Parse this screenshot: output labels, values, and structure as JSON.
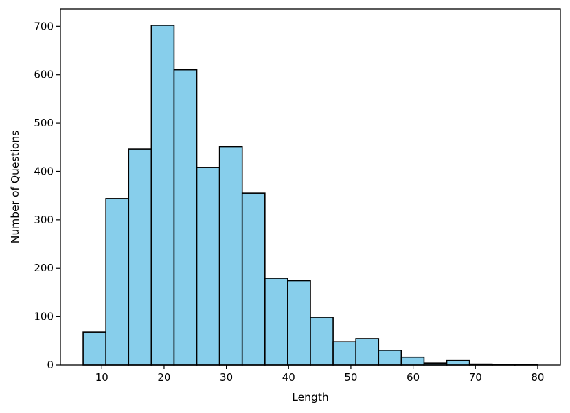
{
  "chart_data": {
    "type": "bar",
    "title": "",
    "xlabel": "Length",
    "ylabel": "Number of Questions",
    "xlim": [
      3.35,
      83.65
    ],
    "ylim": [
      0,
      736
    ],
    "xticks": [
      10,
      20,
      30,
      40,
      50,
      60,
      70,
      80
    ],
    "yticks": [
      0,
      100,
      200,
      300,
      400,
      500,
      600,
      700
    ],
    "grid": false,
    "bar_color": "#87ceeb",
    "edge_color": "#000000",
    "bin_edges": [
      7,
      10.65,
      14.3,
      17.95,
      21.6,
      25.25,
      28.9,
      32.55,
      36.2,
      39.85,
      43.5,
      47.15,
      50.8,
      54.45,
      58.1,
      61.75,
      65.4,
      69.05,
      72.7,
      76.35,
      80
    ],
    "values": [
      68,
      344,
      446,
      702,
      610,
      408,
      451,
      355,
      179,
      174,
      98,
      48,
      54,
      30,
      16,
      4,
      9,
      2,
      1,
      1
    ]
  }
}
